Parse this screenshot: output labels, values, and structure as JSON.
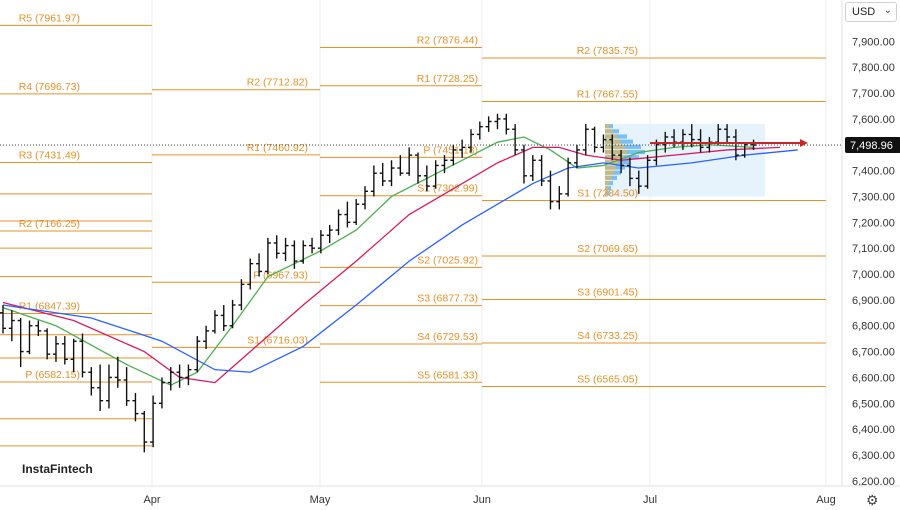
{
  "header": {
    "currency": "USD"
  },
  "brand": {
    "name": "InstaFintech"
  },
  "settings_icon": "gear-icon",
  "colors": {
    "level": "#e69128",
    "candle": "#111111",
    "sma_fast": "#4caf50",
    "sma_mid": "#d81b60",
    "sma_slow": "#2962ff",
    "current_price": "#444444",
    "marker": "#c62828",
    "profile_bg": "#dceefb",
    "profile_bar": "#2196f3",
    "profile_poc": "#f4b43a"
  },
  "chart_data": {
    "type": "bar",
    "ylim": [
      6180,
      8060
    ],
    "y_ticks": [
      "6,200.00",
      "6,300.00",
      "6,400.00",
      "6,500.00",
      "6,600.00",
      "6,700.00",
      "6,800.00",
      "6,900.00",
      "7,000.00",
      "7,100.00",
      "7,200.00",
      "7,300.00",
      "7,400.00",
      "7,600.00",
      "7,700.00",
      "7,800.00",
      "7,900.00"
    ],
    "x_ticks": [
      "Apr",
      "May",
      "Jun",
      "Jul",
      "Aug"
    ],
    "current_price": {
      "label": "7,498.96",
      "value": 7498.96
    },
    "pivot_levels": [
      {
        "label": "R5 (7961.97)",
        "value": 7961.97,
        "period": 1
      },
      {
        "label": "R4 (7696.73)",
        "value": 7696.73,
        "period": 1
      },
      {
        "label": "R3 (7431.49)",
        "value": 7431.49,
        "period": 1
      },
      {
        "label": "R2 (7166.25)",
        "value": 7166.25,
        "period": 1
      },
      {
        "label": "R1 (6847.39)",
        "value": 6847.39,
        "period": 1
      },
      {
        "label": "P (6582.15)",
        "value": 6582.15,
        "period": 1
      },
      {
        "label": "R2 (7712.82)",
        "value": 7712.82,
        "period": 2
      },
      {
        "label": "R1 (7460.92)",
        "value": 7460.92,
        "period": 2
      },
      {
        "label": "P (6967.93)",
        "value": 6967.93,
        "period": 2
      },
      {
        "label": "S1 (6716.03)",
        "value": 6716.03,
        "period": 2
      },
      {
        "label": "R2 (7876.44)",
        "value": 7876.44,
        "period": 3
      },
      {
        "label": "R1 (7728.25)",
        "value": 7728.25,
        "period": 3
      },
      {
        "label": "P (7451.18)",
        "value": 7451.18,
        "period": 3
      },
      {
        "label": "S1 (7302.99)",
        "value": 7302.99,
        "period": 3
      },
      {
        "label": "S2 (7025.92)",
        "value": 7025.92,
        "period": 3
      },
      {
        "label": "S3 (6877.73)",
        "value": 6877.73,
        "period": 3
      },
      {
        "label": "S4 (6729.53)",
        "value": 6729.53,
        "period": 3
      },
      {
        "label": "S5 (6581.33)",
        "value": 6581.33,
        "period": 3
      },
      {
        "label": "R2 (7835.75)",
        "value": 7835.75,
        "period": 4
      },
      {
        "label": "R1 (7667.55)",
        "value": 7667.55,
        "period": 4
      },
      {
        "label": "S1 (7284.50)",
        "value": 7284.5,
        "period": 4
      },
      {
        "label": "S2 (7069.65)",
        "value": 7069.65,
        "period": 4
      },
      {
        "label": "S3 (6901.45)",
        "value": 6901.45,
        "period": 4
      },
      {
        "label": "S4 (6733.25)",
        "value": 6733.25,
        "period": 4
      },
      {
        "label": "S5 (6565.05)",
        "value": 6565.05,
        "period": 4
      }
    ],
    "extra_period1_levels": [
      7310,
      7205,
      7100,
      6990,
      6765,
      6675,
      6440,
      6335
    ],
    "ohlc": [
      [
        6850,
        6880,
        6770,
        6790
      ],
      [
        6790,
        6860,
        6740,
        6820
      ],
      [
        6820,
        6830,
        6640,
        6700
      ],
      [
        6700,
        6820,
        6690,
        6800
      ],
      [
        6800,
        6820,
        6760,
        6780
      ],
      [
        6780,
        6790,
        6670,
        6690
      ],
      [
        6690,
        6760,
        6660,
        6730
      ],
      [
        6730,
        6760,
        6650,
        6670
      ],
      [
        6670,
        6750,
        6620,
        6740
      ],
      [
        6740,
        6770,
        6600,
        6620
      ],
      [
        6620,
        6640,
        6530,
        6560
      ],
      [
        6560,
        6650,
        6470,
        6510
      ],
      [
        6510,
        6650,
        6480,
        6600
      ],
      [
        6600,
        6680,
        6560,
        6590
      ],
      [
        6590,
        6640,
        6490,
        6510
      ],
      [
        6510,
        6540,
        6430,
        6460
      ],
      [
        6460,
        6470,
        6310,
        6350
      ],
      [
        6350,
        6530,
        6330,
        6500
      ],
      [
        6500,
        6600,
        6480,
        6580
      ],
      [
        6580,
        6640,
        6550,
        6620
      ],
      [
        6620,
        6650,
        6560,
        6600
      ],
      [
        6600,
        6650,
        6570,
        6630
      ],
      [
        6630,
        6760,
        6620,
        6740
      ],
      [
        6740,
        6800,
        6710,
        6780
      ],
      [
        6780,
        6860,
        6770,
        6840
      ],
      [
        6840,
        6880,
        6780,
        6800
      ],
      [
        6800,
        6900,
        6790,
        6880
      ],
      [
        6880,
        6980,
        6860,
        6960
      ],
      [
        6960,
        7060,
        6940,
        7040
      ],
      [
        7040,
        7080,
        6990,
        7010
      ],
      [
        7010,
        7140,
        7000,
        7120
      ],
      [
        7120,
        7150,
        7060,
        7080
      ],
      [
        7080,
        7140,
        7050,
        7110
      ],
      [
        7110,
        7130,
        7020,
        7050
      ],
      [
        7050,
        7130,
        7040,
        7110
      ],
      [
        7110,
        7140,
        7080,
        7100
      ],
      [
        7100,
        7170,
        7080,
        7150
      ],
      [
        7150,
        7190,
        7120,
        7170
      ],
      [
        7170,
        7250,
        7150,
        7230
      ],
      [
        7230,
        7280,
        7180,
        7200
      ],
      [
        7200,
        7290,
        7190,
        7270
      ],
      [
        7270,
        7340,
        7250,
        7320
      ],
      [
        7320,
        7420,
        7300,
        7390
      ],
      [
        7390,
        7430,
        7340,
        7360
      ],
      [
        7360,
        7440,
        7340,
        7410
      ],
      [
        7410,
        7460,
        7380,
        7390
      ],
      [
        7390,
        7490,
        7380,
        7460
      ],
      [
        7460,
        7470,
        7350,
        7380
      ],
      [
        7380,
        7420,
        7320,
        7340
      ],
      [
        7340,
        7440,
        7330,
        7420
      ],
      [
        7420,
        7460,
        7390,
        7440
      ],
      [
        7440,
        7500,
        7420,
        7480
      ],
      [
        7480,
        7520,
        7450,
        7490
      ],
      [
        7490,
        7560,
        7470,
        7540
      ],
      [
        7540,
        7590,
        7520,
        7570
      ],
      [
        7570,
        7610,
        7550,
        7590
      ],
      [
        7590,
        7620,
        7560,
        7600
      ],
      [
        7600,
        7620,
        7540,
        7560
      ],
      [
        7560,
        7580,
        7460,
        7480
      ],
      [
        7480,
        7500,
        7350,
        7380
      ],
      [
        7380,
        7460,
        7360,
        7440
      ],
      [
        7440,
        7460,
        7340,
        7360
      ],
      [
        7360,
        7400,
        7250,
        7280
      ],
      [
        7280,
        7340,
        7250,
        7310
      ],
      [
        7310,
        7450,
        7300,
        7430
      ],
      [
        7430,
        7500,
        7410,
        7480
      ],
      [
        7480,
        7580,
        7460,
        7560
      ],
      [
        7560,
        7570,
        7470,
        7490
      ],
      [
        7490,
        7540,
        7470,
        7520
      ],
      [
        7520,
        7540,
        7440,
        7460
      ],
      [
        7460,
        7480,
        7390,
        7420
      ],
      [
        7420,
        7450,
        7340,
        7370
      ],
      [
        7370,
        7400,
        7310,
        7340
      ],
      [
        7340,
        7460,
        7330,
        7440
      ],
      [
        7440,
        7520,
        7420,
        7500
      ],
      [
        7500,
        7550,
        7470,
        7530
      ],
      [
        7530,
        7560,
        7490,
        7510
      ],
      [
        7510,
        7560,
        7480,
        7540
      ],
      [
        7540,
        7580,
        7490,
        7520
      ],
      [
        7520,
        7560,
        7470,
        7490
      ],
      [
        7490,
        7530,
        7470,
        7510
      ],
      [
        7510,
        7580,
        7500,
        7560
      ],
      [
        7560,
        7580,
        7510,
        7530
      ],
      [
        7530,
        7560,
        7440,
        7460
      ],
      [
        7460,
        7510,
        7450,
        7500
      ],
      [
        7500,
        7520,
        7480,
        7499
      ]
    ],
    "sma_fast": [
      [
        0,
        6870
      ],
      [
        6,
        6800
      ],
      [
        14,
        6650
      ],
      [
        19,
        6570
      ],
      [
        22,
        6620
      ],
      [
        26,
        6800
      ],
      [
        30,
        6990
      ],
      [
        36,
        7090
      ],
      [
        40,
        7170
      ],
      [
        44,
        7300
      ],
      [
        48,
        7370
      ],
      [
        52,
        7440
      ],
      [
        56,
        7510
      ],
      [
        59,
        7530
      ],
      [
        62,
        7480
      ],
      [
        65,
        7410
      ],
      [
        68,
        7420
      ],
      [
        72,
        7470
      ],
      [
        76,
        7490
      ],
      [
        80,
        7500
      ],
      [
        85,
        7490
      ]
    ],
    "sma_mid": [
      [
        0,
        6890
      ],
      [
        8,
        6820
      ],
      [
        16,
        6700
      ],
      [
        20,
        6600
      ],
      [
        24,
        6580
      ],
      [
        28,
        6700
      ],
      [
        34,
        6880
      ],
      [
        40,
        7050
      ],
      [
        46,
        7230
      ],
      [
        52,
        7350
      ],
      [
        56,
        7430
      ],
      [
        60,
        7490
      ],
      [
        63,
        7490
      ],
      [
        66,
        7460
      ],
      [
        70,
        7440
      ],
      [
        76,
        7460
      ],
      [
        82,
        7480
      ],
      [
        88,
        7490
      ]
    ],
    "sma_slow": [
      [
        0,
        6880
      ],
      [
        10,
        6830
      ],
      [
        18,
        6740
      ],
      [
        24,
        6630
      ],
      [
        28,
        6620
      ],
      [
        34,
        6720
      ],
      [
        40,
        6880
      ],
      [
        46,
        7050
      ],
      [
        52,
        7190
      ],
      [
        56,
        7270
      ],
      [
        60,
        7350
      ],
      [
        64,
        7410
      ],
      [
        68,
        7430
      ],
      [
        72,
        7410
      ],
      [
        78,
        7430
      ],
      [
        84,
        7460
      ],
      [
        90,
        7480
      ]
    ],
    "volume_profile": {
      "range": [
        7300,
        7580
      ],
      "bars": [
        0.2,
        0.35,
        0.55,
        0.7,
        0.9,
        1.0,
        0.85,
        0.6,
        0.5,
        0.4,
        0.3,
        0.2,
        0.15,
        0.1
      ]
    }
  }
}
